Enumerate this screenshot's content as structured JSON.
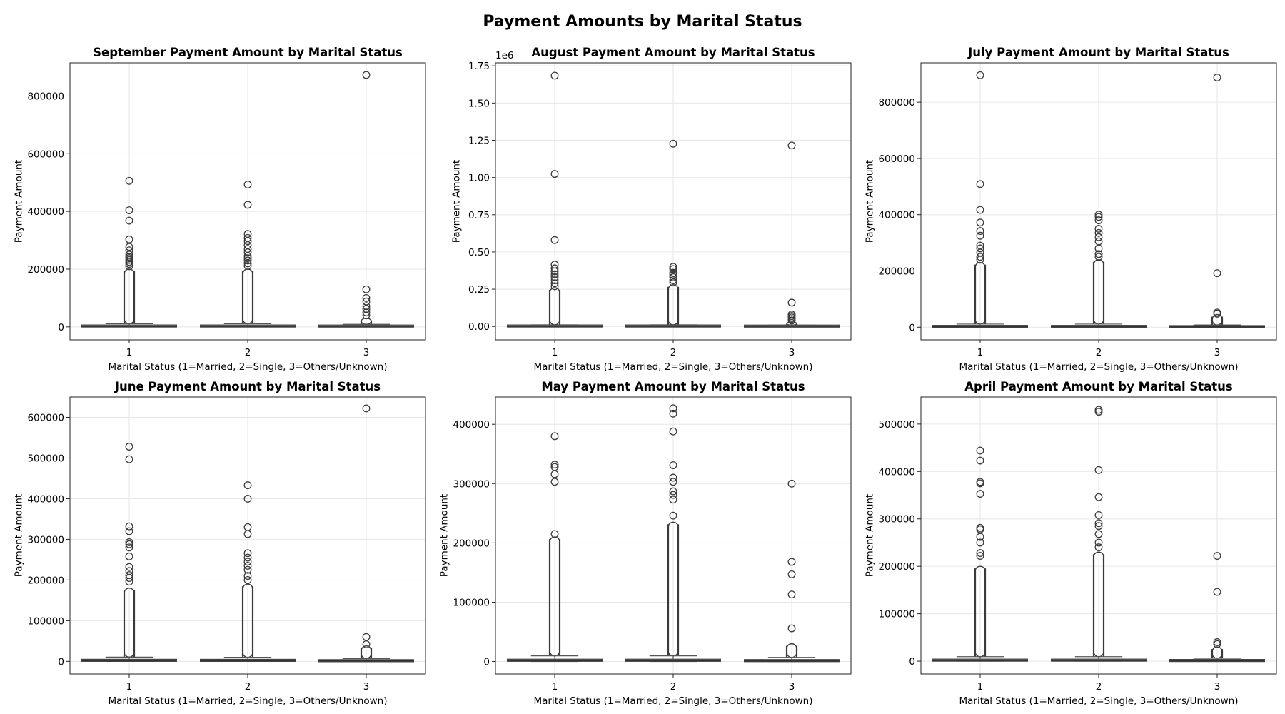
{
  "figure": {
    "title": "Payment Amounts by Marital Status"
  },
  "colors": {
    "married": "#d9534f",
    "single": "#4a86b5",
    "others": "#9a9a9a",
    "box_edge": "#444444"
  },
  "chart_data": [
    {
      "type": "box",
      "title": "September Payment Amount by Marital Status",
      "xlabel": "Marital Status (1=Married, 2=Single, 3=Others/Unknown)",
      "ylabel": "Payment Amount",
      "categories": [
        "1",
        "2",
        "3"
      ],
      "ylim": [
        -45000,
        915000
      ],
      "yticks": [
        0,
        200000,
        400000,
        600000,
        800000
      ],
      "ytick_labels": [
        "0",
        "200000",
        "400000",
        "600000",
        "800000"
      ],
      "offset_label": "",
      "grid": true,
      "boxes": [
        {
          "q1": 1000,
          "median": 2100,
          "q3": 5000,
          "whisker_low": 0,
          "whisker_high": 11000,
          "outlier_density_max": 200000,
          "outliers": [
            506000,
            404000,
            368000,
            303000,
            277000,
            265000,
            250000,
            243000,
            238000,
            232000,
            225000,
            218000,
            210000
          ]
        },
        {
          "q1": 900,
          "median": 2100,
          "q3": 5000,
          "whisker_low": 0,
          "whisker_high": 11000,
          "outlier_density_max": 200000,
          "outliers": [
            493000,
            423000,
            322000,
            308000,
            297000,
            283000,
            270000,
            258000,
            245000,
            238000,
            230000,
            220000,
            211000
          ]
        },
        {
          "q1": 1000,
          "median": 2000,
          "q3": 4500,
          "whisker_low": 0,
          "whisker_high": 9000,
          "outlier_density_max": 30000,
          "outliers": [
            873000,
            130000,
            100000,
            88000,
            72000,
            62000,
            50000,
            40000
          ]
        }
      ]
    },
    {
      "type": "box",
      "title": "August Payment Amount by Marital Status",
      "xlabel": "Marital Status (1=Married, 2=Single, 3=Others/Unknown)",
      "ylabel": "Payment Amount",
      "categories": [
        "1",
        "2",
        "3"
      ],
      "ylim": [
        -0.09,
        1.77
      ],
      "yticks": [
        0,
        0.25,
        0.5,
        0.75,
        1.0,
        1.25,
        1.5,
        1.75
      ],
      "ytick_labels": [
        "0.00",
        "0.25",
        "0.50",
        "0.75",
        "1.00",
        "1.25",
        "1.50",
        "1.75"
      ],
      "offset_label": "1e6",
      "grid": true,
      "boxes": [
        {
          "q1": 0.001,
          "median": 0.002,
          "q3": 0.005,
          "whisker_low": 0,
          "whisker_high": 0.011,
          "outlier_density_max": 0.26,
          "outliers": [
            1.684,
            1.024,
            0.58,
            0.415,
            0.39,
            0.37,
            0.35,
            0.33,
            0.31,
            0.29,
            0.27
          ]
        },
        {
          "q1": 0.0008,
          "median": 0.002,
          "q3": 0.005,
          "whisker_low": 0,
          "whisker_high": 0.011,
          "outlier_density_max": 0.28,
          "outliers": [
            1.227,
            0.4,
            0.385,
            0.36,
            0.345,
            0.33,
            0.31,
            0.295
          ]
        },
        {
          "q1": 0.0005,
          "median": 0.0015,
          "q3": 0.004,
          "whisker_low": 0,
          "whisker_high": 0.009,
          "outlier_density_max": 0.03,
          "outliers": [
            1.215,
            0.16,
            0.08,
            0.07,
            0.06,
            0.05,
            0.04
          ]
        }
      ]
    },
    {
      "type": "box",
      "title": "July Payment Amount by Marital Status",
      "xlabel": "Marital Status (1=Married, 2=Single, 3=Others/Unknown)",
      "ylabel": "Payment Amount",
      "categories": [
        "1",
        "2",
        "3"
      ],
      "ylim": [
        -45000,
        940000
      ],
      "yticks": [
        0,
        200000,
        400000,
        600000,
        800000
      ],
      "ytick_labels": [
        "0",
        "200000",
        "400000",
        "600000",
        "800000"
      ],
      "offset_label": "",
      "grid": true,
      "boxes": [
        {
          "q1": 900,
          "median": 2000,
          "q3": 4800,
          "whisker_low": 0,
          "whisker_high": 11000,
          "outlier_density_max": 230000,
          "outliers": [
            896000,
            509000,
            417000,
            372000,
            342000,
            325000,
            290000,
            280000,
            265000,
            250000,
            240000
          ]
        },
        {
          "q1": 800,
          "median": 2000,
          "q3": 4800,
          "whisker_low": 0,
          "whisker_high": 11000,
          "outlier_density_max": 240000,
          "outliers": [
            400000,
            392000,
            380000,
            350000,
            335000,
            320000,
            305000,
            280000,
            260000,
            250000
          ]
        },
        {
          "q1": 500,
          "median": 1500,
          "q3": 3500,
          "whisker_low": 0,
          "whisker_high": 8000,
          "outlier_density_max": 45000,
          "outliers": [
            888000,
            192000,
            52000,
            48000
          ]
        }
      ]
    },
    {
      "type": "box",
      "title": "June Payment Amount by Marital Status",
      "xlabel": "Marital Status (1=Married, 2=Single, 3=Others/Unknown)",
      "ylabel": "Payment Amount",
      "categories": [
        "1",
        "2",
        "3"
      ],
      "ylim": [
        -31000,
        650000
      ],
      "yticks": [
        0,
        100000,
        200000,
        300000,
        400000,
        500000,
        600000
      ],
      "ytick_labels": [
        "0",
        "100000",
        "200000",
        "300000",
        "400000",
        "500000",
        "600000"
      ],
      "offset_label": "",
      "grid": true,
      "boxes": [
        {
          "q1": 700,
          "median": 1800,
          "q3": 4500,
          "whisker_low": 0,
          "whisker_high": 10500,
          "outlier_density_max": 180000,
          "outliers": [
            528000,
            497000,
            332000,
            320000,
            293000,
            288000,
            280000,
            258000,
            232000,
            222000,
            212000,
            205000,
            196000
          ]
        },
        {
          "q1": 600,
          "median": 1800,
          "q3": 4400,
          "whisker_low": 0,
          "whisker_high": 10000,
          "outlier_density_max": 190000,
          "outliers": [
            433000,
            400000,
            330000,
            313000,
            266000,
            255000,
            245000,
            235000,
            225000,
            210000,
            200000
          ]
        },
        {
          "q1": 200,
          "median": 1200,
          "q3": 3200,
          "whisker_low": 0,
          "whisker_high": 7000,
          "outlier_density_max": 38000,
          "outliers": [
            622000,
            60000,
            42000
          ]
        }
      ]
    },
    {
      "type": "box",
      "title": "May Payment Amount by Marital Status",
      "xlabel": "Marital Status (1=Married, 2=Single, 3=Others/Unknown)",
      "ylabel": "Payment Amount",
      "categories": [
        "1",
        "2",
        "3"
      ],
      "ylim": [
        -21000,
        446000
      ],
      "yticks": [
        0,
        100000,
        200000,
        300000,
        400000
      ],
      "ytick_labels": [
        "0",
        "100000",
        "200000",
        "300000",
        "400000"
      ],
      "offset_label": "",
      "grid": true,
      "boxes": [
        {
          "q1": 300,
          "median": 1500,
          "q3": 4000,
          "whisker_low": 0,
          "whisker_high": 9500,
          "outlier_density_max": 210000,
          "outliers": [
            380000,
            332000,
            328000,
            316000,
            303000,
            215000
          ]
        },
        {
          "q1": 300,
          "median": 1500,
          "q3": 4000,
          "whisker_low": 0,
          "whisker_high": 9500,
          "outlier_density_max": 235000,
          "outliers": [
            427000,
            418000,
            388000,
            331000,
            310000,
            303000,
            287000,
            281000,
            273000,
            246000
          ]
        },
        {
          "q1": 100,
          "median": 1000,
          "q3": 3000,
          "whisker_low": 0,
          "whisker_high": 7000,
          "outlier_density_max": 30000,
          "outliers": [
            300000,
            168000,
            147000,
            113000,
            56000
          ]
        }
      ]
    },
    {
      "type": "box",
      "title": "April Payment Amount by Marital Status",
      "xlabel": "Marital Status (1=Married, 2=Single, 3=Others/Unknown)",
      "ylabel": "Payment Amount",
      "categories": [
        "1",
        "2",
        "3"
      ],
      "ylim": [
        -27000,
        557000
      ],
      "yticks": [
        0,
        100000,
        200000,
        300000,
        400000,
        500000
      ],
      "ytick_labels": [
        "0",
        "100000",
        "200000",
        "300000",
        "400000",
        "500000"
      ],
      "offset_label": "",
      "grid": true,
      "boxes": [
        {
          "q1": 300,
          "median": 1500,
          "q3": 4000,
          "whisker_low": 0,
          "whisker_high": 9500,
          "outlier_density_max": 200000,
          "outliers": [
            444000,
            423000,
            378000,
            375000,
            353000,
            281000,
            278000,
            262000,
            250000,
            228000,
            222000
          ]
        },
        {
          "q1": 300,
          "median": 1500,
          "q3": 4000,
          "whisker_low": 0,
          "whisker_high": 9500,
          "outlier_density_max": 230000,
          "outliers": [
            530000,
            526000,
            403000,
            346000,
            308000,
            291000,
            285000,
            268000,
            250000,
            240000
          ]
        },
        {
          "q1": 50,
          "median": 900,
          "q3": 2800,
          "whisker_low": 0,
          "whisker_high": 6000,
          "outlier_density_max": 30000,
          "outliers": [
            222000,
            146000,
            40000,
            36000
          ]
        }
      ]
    }
  ]
}
